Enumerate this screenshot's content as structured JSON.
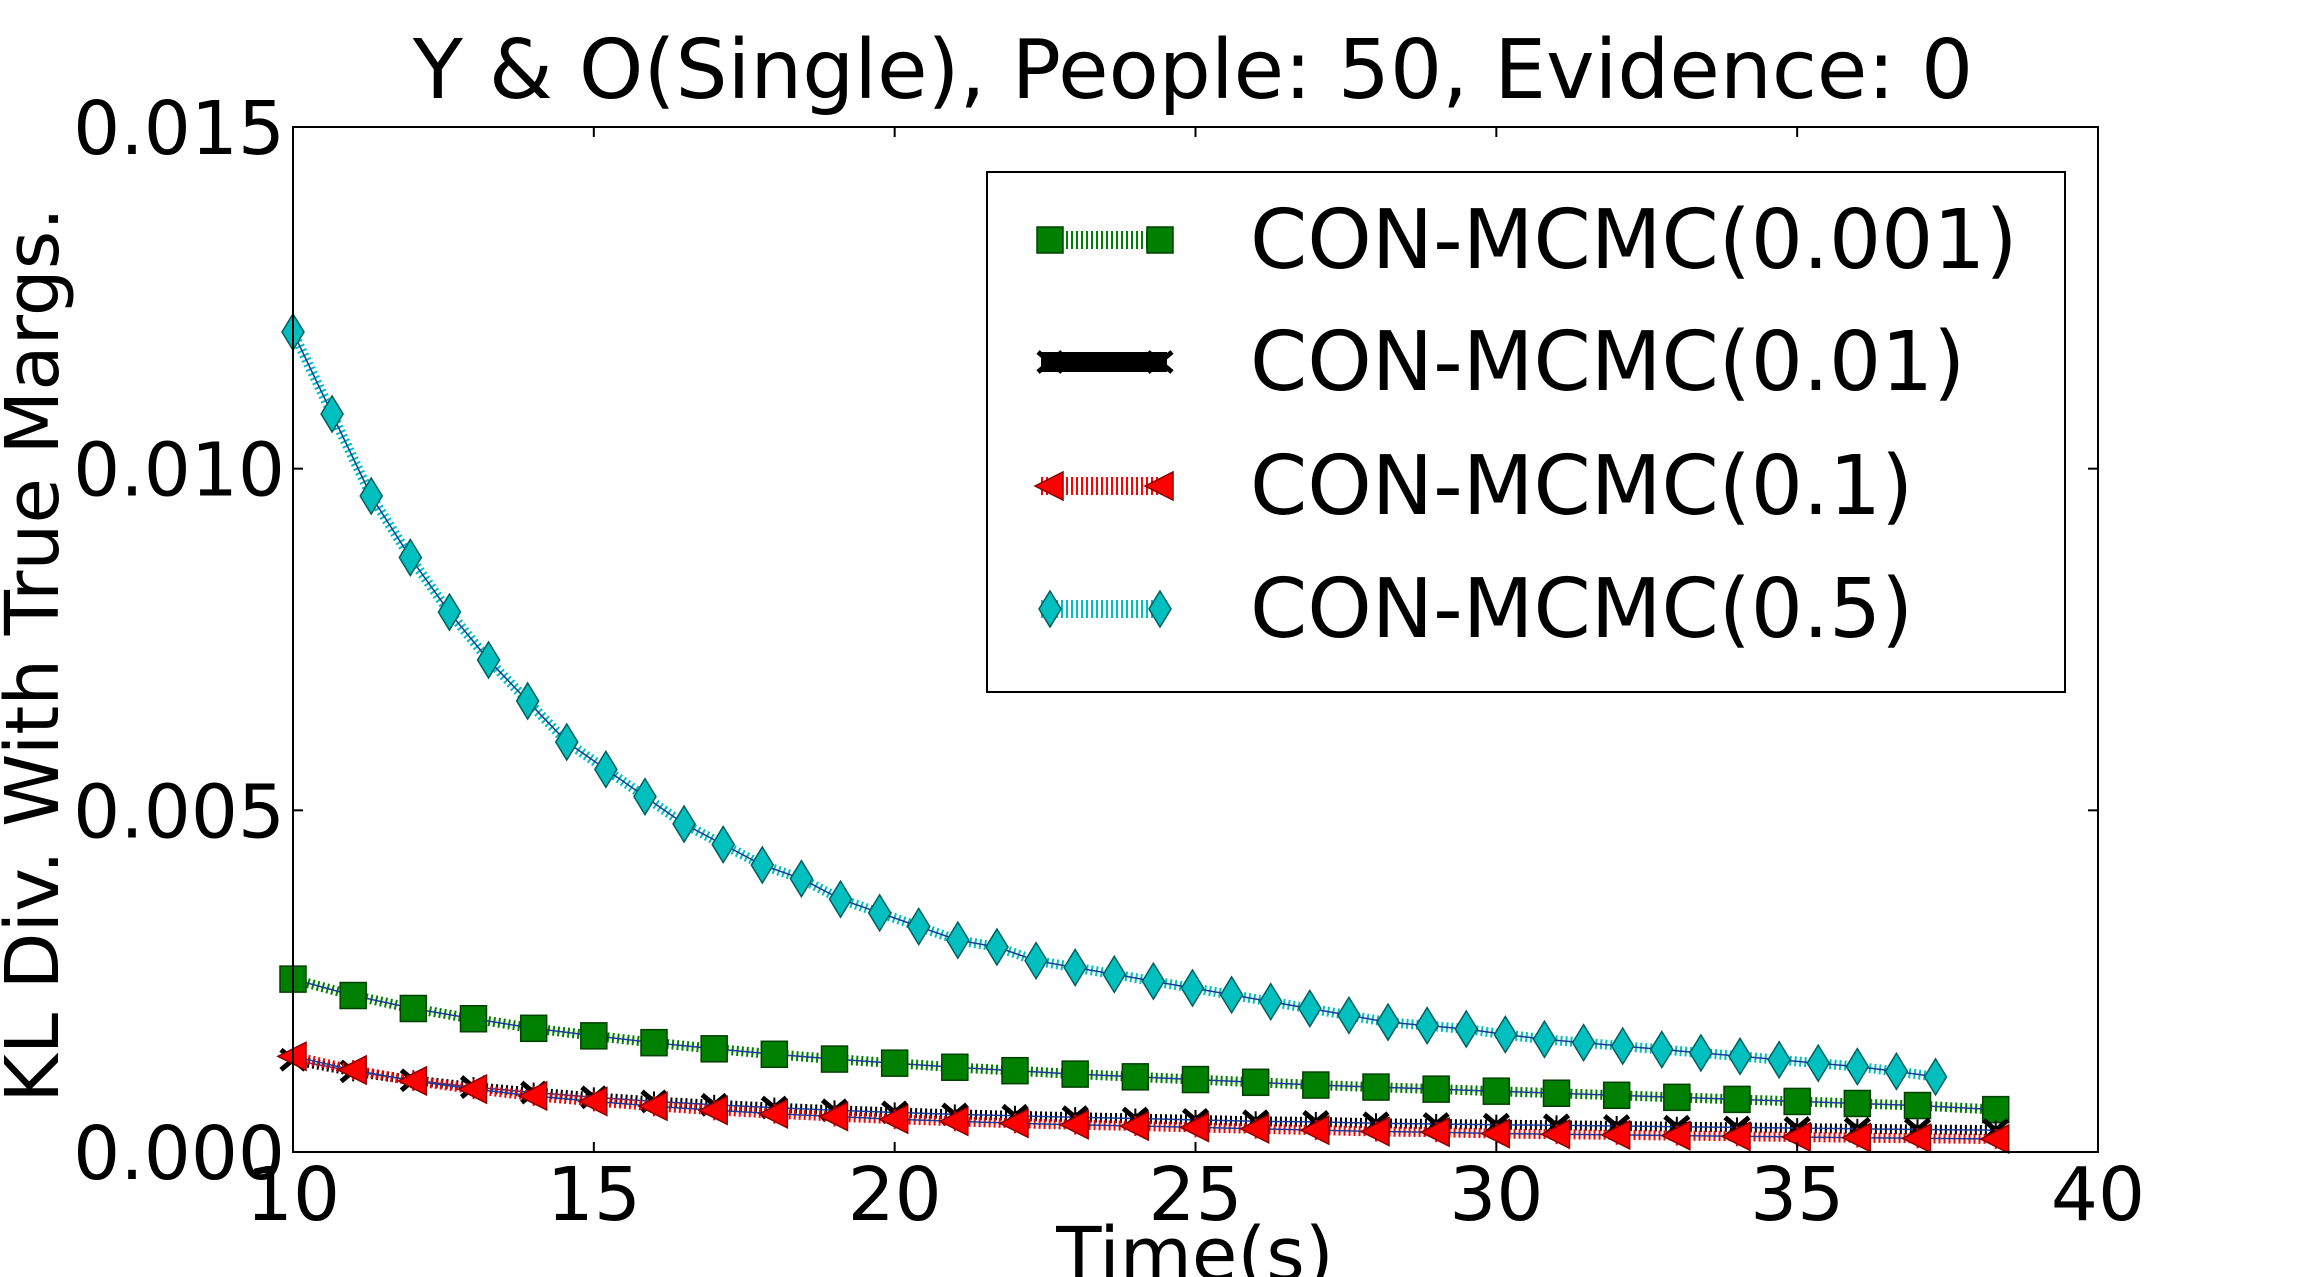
{
  "chart_data": {
    "type": "line",
    "title": "Y & O(Single), People: 50, Evidence: 0",
    "xlabel": "Time(s)",
    "ylabel": "KL Div. With True Margs.",
    "xlim": [
      10,
      40
    ],
    "ylim": [
      0,
      0.015
    ],
    "xticks": [
      "10",
      "15",
      "20",
      "25",
      "30",
      "35",
      "40"
    ],
    "yticks": [
      "0.000",
      "0.005",
      "0.010",
      "0.015"
    ],
    "legend_position": "top-right",
    "grid": false,
    "series": [
      {
        "name": "CON-MCMC(0.001)",
        "color": "#008000",
        "marker": "square",
        "x": [
          10.0,
          11.0,
          12.0,
          13.0,
          14.0,
          15.0,
          16.0,
          17.0,
          18.0,
          19.0,
          20.0,
          21.0,
          22.0,
          23.0,
          24.0,
          25.0,
          26.0,
          27.0,
          28.0,
          29.0,
          30.0,
          31.0,
          32.0,
          33.0,
          34.0,
          35.0,
          36.0,
          37.0,
          38.3
        ],
        "y": [
          0.00253,
          0.00229,
          0.0021,
          0.00195,
          0.00181,
          0.0017,
          0.0016,
          0.00151,
          0.00143,
          0.00136,
          0.0013,
          0.00124,
          0.00119,
          0.00114,
          0.0011,
          0.00106,
          0.00102,
          0.00098,
          0.00095,
          0.00092,
          0.00089,
          0.00086,
          0.00083,
          0.0008,
          0.00077,
          0.00074,
          0.00071,
          0.00068,
          0.00062
        ]
      },
      {
        "name": "CON-MCMC(0.01)",
        "color": "#000000",
        "marker": "x",
        "x": [
          10.0,
          11.0,
          12.0,
          13.0,
          14.0,
          15.0,
          16.0,
          17.0,
          18.0,
          19.0,
          20.0,
          21.0,
          22.0,
          23.0,
          24.0,
          25.0,
          26.0,
          27.0,
          28.0,
          29.0,
          30.0,
          31.0,
          32.0,
          33.0,
          34.0,
          35.0,
          36.0,
          37.0,
          38.3
        ],
        "y": [
          0.00135,
          0.00118,
          0.00105,
          0.00095,
          0.00087,
          0.0008,
          0.00074,
          0.00069,
          0.00065,
          0.00061,
          0.00058,
          0.00055,
          0.00053,
          0.00051,
          0.00049,
          0.00047,
          0.00045,
          0.00044,
          0.00042,
          0.00041,
          0.0004,
          0.00039,
          0.00038,
          0.00037,
          0.00036,
          0.00035,
          0.00034,
          0.00033,
          0.00032
        ]
      },
      {
        "name": "CON-MCMC(0.1)",
        "color": "#ff0000",
        "marker": "triangle-left",
        "x": [
          10.0,
          11.0,
          12.0,
          13.0,
          14.0,
          15.0,
          16.0,
          17.0,
          18.0,
          19.0,
          20.0,
          21.0,
          22.0,
          23.0,
          24.0,
          25.0,
          26.0,
          27.0,
          28.0,
          29.0,
          30.0,
          31.0,
          32.0,
          33.0,
          34.0,
          35.0,
          36.0,
          37.0,
          38.3
        ],
        "y": [
          0.0014,
          0.0012,
          0.00104,
          0.00092,
          0.00082,
          0.00074,
          0.00067,
          0.00061,
          0.00056,
          0.00052,
          0.00048,
          0.00045,
          0.00042,
          0.0004,
          0.00038,
          0.00036,
          0.00034,
          0.00032,
          0.0003,
          0.00029,
          0.00027,
          0.00026,
          0.00025,
          0.00024,
          0.00023,
          0.00022,
          0.00021,
          0.0002,
          0.00019
        ]
      },
      {
        "name": "CON-MCMC(0.5)",
        "color": "#00bfbf",
        "marker": "diamond",
        "x": [
          10.0,
          10.65,
          11.3,
          11.95,
          12.6,
          13.25,
          13.9,
          14.55,
          15.2,
          15.85,
          16.5,
          17.15,
          17.8,
          18.45,
          19.1,
          19.75,
          20.4,
          21.05,
          21.7,
          22.35,
          23.0,
          23.65,
          24.3,
          24.95,
          25.6,
          26.25,
          26.9,
          27.55,
          28.2,
          28.85,
          29.5,
          30.15,
          30.8,
          31.45,
          32.1,
          32.75,
          33.4,
          34.05,
          34.7,
          35.35,
          36.0,
          36.65,
          37.3
        ],
        "y": [
          0.012,
          0.0108,
          0.0096,
          0.0087,
          0.0079,
          0.0072,
          0.0066,
          0.006,
          0.0056,
          0.0052,
          0.0048,
          0.0045,
          0.0042,
          0.004,
          0.0037,
          0.0035,
          0.0033,
          0.0031,
          0.003,
          0.0028,
          0.0027,
          0.0026,
          0.0025,
          0.0024,
          0.0023,
          0.0022,
          0.0021,
          0.002,
          0.0019,
          0.00185,
          0.0018,
          0.00172,
          0.00165,
          0.0016,
          0.00155,
          0.0015,
          0.00145,
          0.0014,
          0.00135,
          0.0013,
          0.00125,
          0.00118,
          0.0011
        ]
      }
    ]
  }
}
